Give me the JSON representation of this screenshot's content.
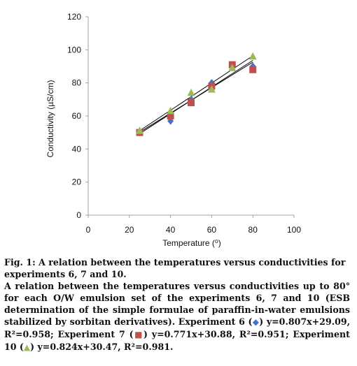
{
  "chart_data": {
    "type": "scatter",
    "xlabel": "Temperature (⁰)",
    "ylabel": "Conductivity (µS/cm)",
    "xlim": [
      0,
      100
    ],
    "ylim": [
      0,
      120
    ],
    "x_ticks": [
      0,
      20,
      40,
      60,
      80,
      100
    ],
    "y_ticks": [
      0,
      20,
      40,
      60,
      80,
      100,
      120
    ],
    "grid": false,
    "x": [
      25,
      40,
      50,
      60,
      70,
      80
    ],
    "series": [
      {
        "marker": "diamond",
        "color": "#4472c4",
        "values": [
          50,
          57,
          70,
          80,
          90,
          90
        ]
      },
      {
        "marker": "square",
        "color": "#c0504d",
        "values": [
          50,
          60,
          68,
          78,
          91,
          88
        ]
      },
      {
        "marker": "triangle",
        "color": "#9bbb59",
        "values": [
          51,
          63,
          74,
          76,
          89,
          96
        ]
      }
    ],
    "trendlines": [
      {
        "slope": 0.807,
        "intercept": 29.09,
        "x_range": [
          25,
          80
        ],
        "color": "#000000"
      },
      {
        "slope": 0.771,
        "intercept": 30.88,
        "x_range": [
          25,
          80
        ],
        "color": "#000000"
      },
      {
        "slope": 0.824,
        "intercept": 30.47,
        "x_range": [
          25,
          80
        ],
        "color": "#000000"
      }
    ]
  },
  "caption": {
    "title": "Fig. 1: A relation between the temperatures versus conductivities for experiments 6, 7 and 10.",
    "text_1": "A relation between the temperatures versus conductivities up to 80° for each O/W emulsion set of the experiments 6, 7 and 10 (ESB determination of the simple formulae of paraffin-in-water emulsions stabilized by sorbitan derivatives). Experiment 6 (",
    "symbol_1": "◆",
    "text_2": ") y=0.807x+29.09, R²=0.958; Experiment 7 (",
    "symbol_2": "■",
    "text_3": ") y=0.771x+30.88, R²=0.951; Experiment 10 (",
    "symbol_3": "▲",
    "text_4": ") y=0.824x+30.47, R²=0.981."
  }
}
